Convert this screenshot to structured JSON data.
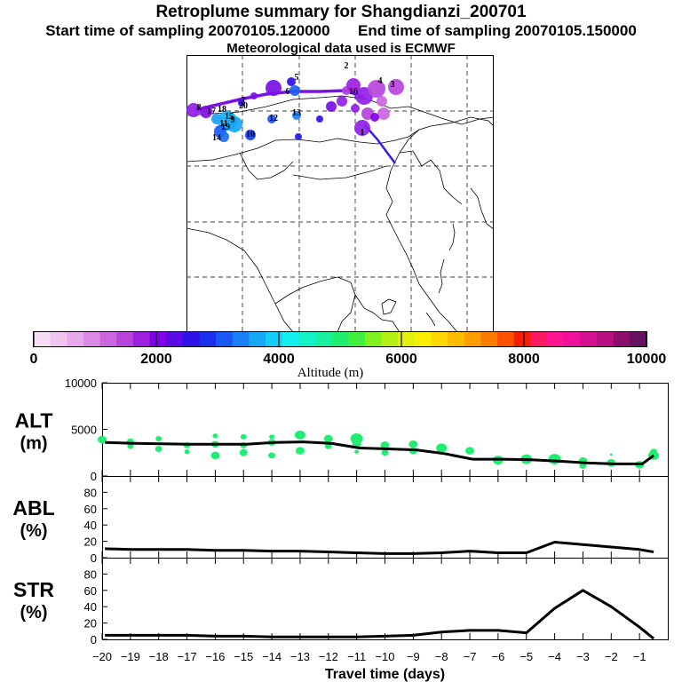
{
  "header": {
    "title": "Retroplume summary for Shangdianzi_200701",
    "start_label": "Start time of sampling",
    "start_time": "20070105.120000",
    "end_label": "End time of sampling",
    "end_time": "20070105.150000",
    "met_label": "Meteorological data used is ECMWF"
  },
  "map": {
    "plume_labels": [
      "1",
      "2",
      "3",
      "4",
      "5",
      "6",
      "7",
      "8",
      "9",
      "10",
      "11",
      "12",
      "13",
      "14",
      "15",
      "16",
      "17",
      "18",
      "19",
      "20"
    ]
  },
  "colorbar": {
    "label": "Altitude (m)",
    "ticks": [
      "0",
      "2000",
      "4000",
      "6000",
      "8000",
      "10000"
    ],
    "colors": [
      "#f6dcf6",
      "#f0c4f0",
      "#e8a8ec",
      "#dc8ae6",
      "#cc66e0",
      "#b844dc",
      "#a020e0",
      "#8000e8",
      "#5a0ae6",
      "#3010e8",
      "#1a30f0",
      "#1a58f4",
      "#1a80f6",
      "#14a8f6",
      "#10cef4",
      "#12f0f0",
      "#14f0c8",
      "#18f0a0",
      "#20ee70",
      "#40f040",
      "#80f020",
      "#b4f014",
      "#e2f00c",
      "#f8f000",
      "#fcd800",
      "#fcbc00",
      "#fc9e00",
      "#fc7c00",
      "#fc5000",
      "#f81c08",
      "#fc1860",
      "#fc1490",
      "#f0109a",
      "#d4108e",
      "#b81080",
      "#8a0e6c",
      "#681060"
    ]
  },
  "chart_data": [
    {
      "type": "line",
      "panel": "ALT",
      "ylabel": "ALT\n(m)",
      "ylabel_line1": "ALT",
      "ylabel_line2": "(m)",
      "ylim": [
        0,
        10000
      ],
      "yticks": [
        0,
        5000,
        10000
      ],
      "ytick_labels": [
        "0",
        "5000",
        "10000"
      ],
      "grid": false,
      "x": [
        -19.9,
        -18.9,
        -17.9,
        -16.9,
        -15.9,
        -14.9,
        -13.9,
        -12.9,
        -11.9,
        -10.9,
        -9.9,
        -8.9,
        -7.9,
        -6.9,
        -5.9,
        -4.9,
        -3.9,
        -2.9,
        -1.9,
        -0.9,
        -0.5
      ],
      "y": [
        3600,
        3500,
        3450,
        3400,
        3400,
        3400,
        3600,
        3650,
        3500,
        3000,
        2900,
        2800,
        2400,
        1800,
        1800,
        1750,
        1600,
        1400,
        1300,
        1300,
        2200
      ],
      "scatter": [
        {
          "x": -20.0,
          "y": 3900,
          "s": 5
        },
        {
          "x": -19.0,
          "y": 3700,
          "s": 4
        },
        {
          "x": -19.0,
          "y": 3200,
          "s": 3.5
        },
        {
          "x": -18.0,
          "y": 4000,
          "s": 3.5
        },
        {
          "x": -18.0,
          "y": 2900,
          "s": 4
        },
        {
          "x": -17.0,
          "y": 3300,
          "s": 4
        },
        {
          "x": -17.0,
          "y": 2600,
          "s": 3
        },
        {
          "x": -16.0,
          "y": 4300,
          "s": 3
        },
        {
          "x": -16.0,
          "y": 3400,
          "s": 4.5
        },
        {
          "x": -16.0,
          "y": 2200,
          "s": 5
        },
        {
          "x": -15.0,
          "y": 4200,
          "s": 3.5
        },
        {
          "x": -15.0,
          "y": 3300,
          "s": 4
        },
        {
          "x": -15.0,
          "y": 2500,
          "s": 4.5
        },
        {
          "x": -14.0,
          "y": 4200,
          "s": 3
        },
        {
          "x": -14.0,
          "y": 3600,
          "s": 4.5
        },
        {
          "x": -14.0,
          "y": 2200,
          "s": 4
        },
        {
          "x": -13.0,
          "y": 4400,
          "s": 6
        },
        {
          "x": -13.0,
          "y": 2700,
          "s": 5
        },
        {
          "x": -12.0,
          "y": 4000,
          "s": 5
        },
        {
          "x": -12.0,
          "y": 3200,
          "s": 4
        },
        {
          "x": -11.0,
          "y": 4000,
          "s": 7
        },
        {
          "x": -11.0,
          "y": 3400,
          "s": 5
        },
        {
          "x": -11.0,
          "y": 2600,
          "s": 2.5
        },
        {
          "x": -10.0,
          "y": 3300,
          "s": 5
        },
        {
          "x": -10.0,
          "y": 2500,
          "s": 4
        },
        {
          "x": -9.0,
          "y": 3400,
          "s": 5
        },
        {
          "x": -9.0,
          "y": 2700,
          "s": 4.5
        },
        {
          "x": -8.0,
          "y": 3000,
          "s": 6
        },
        {
          "x": -7.0,
          "y": 2700,
          "s": 5
        },
        {
          "x": -6.0,
          "y": 1700,
          "s": 6
        },
        {
          "x": -5.0,
          "y": 1800,
          "s": 6.5
        },
        {
          "x": -4.0,
          "y": 1800,
          "s": 7
        },
        {
          "x": -3.0,
          "y": 1600,
          "s": 5
        },
        {
          "x": -3.0,
          "y": 1100,
          "s": 4
        },
        {
          "x": -2.0,
          "y": 1400,
          "s": 5
        },
        {
          "x": -2.0,
          "y": 2300,
          "s": 1.5
        },
        {
          "x": -1.0,
          "y": 1200,
          "s": 5
        },
        {
          "x": -0.5,
          "y": 2200,
          "s": 6
        },
        {
          "x": -0.5,
          "y": 2600,
          "s": 4
        }
      ]
    },
    {
      "type": "line",
      "panel": "ABL",
      "ylabel_line1": "ABL",
      "ylabel_line2": "(%)",
      "ylim": [
        0,
        100
      ],
      "yticks": [
        0,
        20,
        40,
        60,
        80
      ],
      "ytick_labels": [
        "0",
        "20",
        "40",
        "60",
        "80"
      ],
      "grid": false,
      "x": [
        -19.9,
        -19.0,
        -18.0,
        -17.0,
        -16.0,
        -15.0,
        -14.0,
        -13.0,
        -12.0,
        -11.0,
        -10.0,
        -9.0,
        -8.0,
        -7.0,
        -6.0,
        -5.0,
        -4.0,
        -3.0,
        -2.0,
        -1.0,
        -0.5
      ],
      "y": [
        11,
        10,
        10,
        10,
        9,
        9,
        8,
        8,
        7,
        6,
        5,
        5,
        6,
        8,
        6,
        6,
        19,
        16,
        13,
        10,
        7
      ]
    },
    {
      "type": "line",
      "panel": "STR",
      "ylabel_line1": "STR",
      "ylabel_line2": "(%)",
      "ylim": [
        0,
        100
      ],
      "yticks": [
        0,
        20,
        40,
        60,
        80
      ],
      "ytick_labels": [
        "0",
        "20",
        "40",
        "60",
        "80"
      ],
      "xlabel": "Travel time (days)",
      "xlim": [
        -20,
        0
      ],
      "xticks": [
        -20,
        -19,
        -18,
        -17,
        -16,
        -15,
        -14,
        -13,
        -12,
        -11,
        -10,
        -9,
        -8,
        -7,
        -6,
        -5,
        -4,
        -3,
        -2,
        -1
      ],
      "xtick_labels": [
        "−20",
        "−19",
        "−18",
        "−17",
        "−16",
        "−15",
        "−14",
        "−13",
        "−12",
        "−11",
        "−10",
        "−9",
        "−8",
        "−7",
        "−6",
        "−5",
        "−4",
        "−3",
        "−2",
        "−1"
      ],
      "grid": false,
      "x": [
        -19.9,
        -19.0,
        -18.0,
        -17.0,
        -16.0,
        -15.0,
        -14.0,
        -13.0,
        -12.0,
        -11.0,
        -10.0,
        -9.0,
        -8.0,
        -7.0,
        -6.0,
        -5.0,
        -4.0,
        -3.0,
        -2.0,
        -1.0,
        -0.5
      ],
      "y": [
        5,
        5,
        5,
        5,
        4,
        4,
        3,
        3,
        3,
        3,
        4,
        5,
        9,
        11,
        11,
        8,
        38,
        60,
        40,
        15,
        1
      ]
    }
  ]
}
